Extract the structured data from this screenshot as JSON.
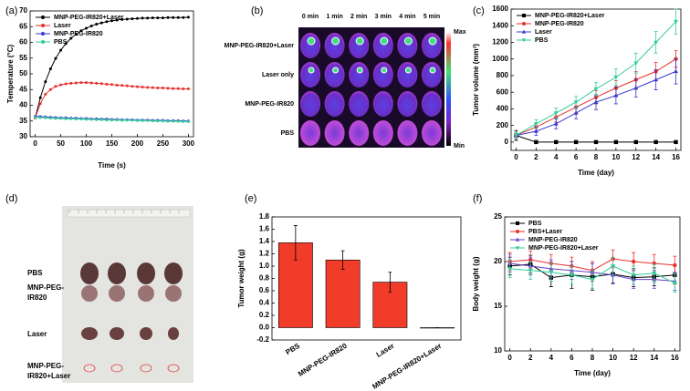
{
  "chart_data": [
    {
      "type": "line",
      "panel": "(a)",
      "xlabel": "Time (s)",
      "ylabel": "Temperature (°C)",
      "x": [
        0,
        10,
        20,
        30,
        40,
        50,
        60,
        70,
        80,
        90,
        100,
        110,
        120,
        130,
        140,
        150,
        160,
        170,
        180,
        190,
        200,
        210,
        220,
        230,
        240,
        250,
        260,
        270,
        280,
        290,
        300
      ],
      "xlim": [
        -10,
        310
      ],
      "xticks": [
        0,
        50,
        100,
        150,
        200,
        250,
        300
      ],
      "ylim": [
        30,
        70
      ],
      "yticks": [
        30,
        35,
        40,
        45,
        50,
        55,
        60,
        65,
        70
      ],
      "series": [
        {
          "name": "MNP-PEG-IR820+Laser",
          "color": "#000000",
          "values": [
            36.0,
            42.4,
            47.5,
            51.6,
            54.9,
            57.5,
            59.6,
            61.3,
            62.6,
            63.7,
            64.5,
            65.2,
            65.8,
            66.2,
            66.6,
            66.9,
            67.1,
            67.3,
            67.4,
            67.5,
            67.6,
            67.7,
            67.7,
            67.8,
            67.8,
            67.8,
            67.9,
            67.9,
            67.9,
            67.9,
            68.0
          ]
        },
        {
          "name": "Laser",
          "color": "#e8302e",
          "values": [
            36,
            40.5,
            43.5,
            45,
            46,
            46.5,
            46.8,
            47,
            47.1,
            47.2,
            47.2,
            47.1,
            47,
            46.9,
            46.7,
            46.6,
            46.4,
            46.3,
            46.2,
            46,
            45.9,
            45.8,
            45.7,
            45.6,
            45.5,
            45.5,
            45.4,
            45.3,
            45.3,
            45.2,
            45.2
          ]
        },
        {
          "name": "MNP-PEG-IR820",
          "color": "#3a3ad0",
          "values": [
            36.5,
            36.4,
            36.3,
            36.2,
            36.1,
            36.0,
            36.0,
            35.9,
            35.9,
            35.8,
            35.8,
            35.7,
            35.7,
            35.6,
            35.6,
            35.5,
            35.5,
            35.4,
            35.4,
            35.4,
            35.3,
            35.3,
            35.3,
            35.2,
            35.2,
            35.2,
            35.1,
            35.1,
            35.1,
            35.0,
            35.0
          ]
        },
        {
          "name": "PBS",
          "color": "#33cc99",
          "values": [
            36.2,
            36.1,
            36.0,
            35.9,
            35.8,
            35.8,
            35.7,
            35.7,
            35.6,
            35.6,
            35.5,
            35.5,
            35.4,
            35.4,
            35.3,
            35.3,
            35.3,
            35.2,
            35.2,
            35.2,
            35.1,
            35.1,
            35.1,
            35.0,
            35.0,
            35.0,
            34.9,
            34.9,
            34.9,
            34.8,
            34.8
          ]
        }
      ]
    },
    {
      "type": "line",
      "panel": "(c)",
      "xlabel": "Time (day)",
      "ylabel": "Tumor volume (mm³)",
      "x": [
        0,
        2,
        4,
        6,
        8,
        10,
        12,
        14,
        16
      ],
      "xlim": [
        -0.5,
        16.5
      ],
      "xticks": [
        0,
        2,
        4,
        6,
        8,
        10,
        12,
        14,
        16
      ],
      "ylim": [
        -100,
        1600
      ],
      "yticks": [
        0,
        200,
        400,
        600,
        800,
        1000,
        1200,
        1400,
        1600
      ],
      "series": [
        {
          "name": "MNP-PEG-IR820+Laser",
          "color": "#000000",
          "marker": "square",
          "values": [
            80,
            0,
            0,
            0,
            0,
            0,
            0,
            0,
            0
          ],
          "errors": [
            60,
            0,
            0,
            0,
            0,
            0,
            0,
            0,
            0
          ]
        },
        {
          "name": "MNP-PEG-IR820",
          "color": "#e8302e",
          "marker": "circle",
          "values": [
            80,
            180,
            300,
            420,
            540,
            650,
            750,
            850,
            1000
          ],
          "errors": [
            40,
            50,
            60,
            70,
            80,
            90,
            100,
            110,
            100
          ]
        },
        {
          "name": "Laser",
          "color": "#3a3ad0",
          "marker": "triangle",
          "values": [
            80,
            130,
            220,
            350,
            480,
            560,
            650,
            750,
            850
          ],
          "errors": [
            40,
            50,
            60,
            70,
            90,
            100,
            110,
            120,
            150
          ]
        },
        {
          "name": "PBS",
          "color": "#33cc99",
          "marker": "triangle-down",
          "values": [
            80,
            220,
            350,
            480,
            640,
            780,
            950,
            1200,
            1450
          ],
          "errors": [
            40,
            50,
            60,
            70,
            80,
            100,
            120,
            130,
            150
          ]
        }
      ]
    },
    {
      "type": "bar",
      "panel": "(e)",
      "ylabel": "Tumor weight (g)",
      "categories": [
        "PBS",
        "MNP-PEG-IR820",
        "Laser",
        "MNP-PEG-IR820+Laser"
      ],
      "values": [
        1.38,
        1.1,
        0.74,
        0.0
      ],
      "errors": [
        0.28,
        0.15,
        0.16,
        0
      ],
      "color": "#f03c28",
      "ylim": [
        -0.2,
        1.8
      ],
      "yticks": [
        -0.2,
        {
          "value": 0,
          "label": "0.0"
        },
        0.2,
        0.4,
        0.6,
        0.8,
        {
          "value": 1,
          "label": "1.0"
        },
        1.2,
        1.4,
        1.6,
        1.8
      ]
    },
    {
      "type": "line",
      "panel": "(f)",
      "xlabel": "Time (day)",
      "ylabel": "Body weight (g)",
      "x": [
        0,
        2,
        4,
        6,
        8,
        10,
        12,
        14,
        16
      ],
      "xlim": [
        -0.5,
        16.5
      ],
      "xticks": [
        0,
        2,
        4,
        6,
        8,
        10,
        12,
        14,
        16
      ],
      "ylim": [
        10,
        25
      ],
      "yticks": [
        10,
        15,
        20,
        25
      ],
      "series": [
        {
          "name": "PBS",
          "color": "#000000",
          "marker": "square",
          "values": [
            19.5,
            19.7,
            18.2,
            18.5,
            18.3,
            18.6,
            18.2,
            18.3,
            18.5
          ],
          "errors": [
            1,
            1,
            1,
            1.5,
            1.5,
            1,
            1,
            1,
            1
          ]
        },
        {
          "name": "PBS+Laser",
          "color": "#e8302e",
          "marker": "circle",
          "values": [
            20.0,
            20.2,
            19.8,
            19.5,
            19.0,
            20.3,
            20.0,
            19.8,
            19.6
          ],
          "errors": [
            1,
            1,
            1,
            1,
            1,
            1,
            1,
            1,
            1
          ]
        },
        {
          "name": "MNP-PEG-IR820",
          "color": "#6a3fc8",
          "marker": "triangle",
          "values": [
            19.8,
            19.5,
            19.2,
            19.0,
            18.8,
            18.5,
            18.0,
            18.0,
            17.8
          ],
          "errors": [
            1,
            1,
            1,
            1,
            1,
            1,
            1,
            1,
            1
          ]
        },
        {
          "name": "MNP-PEG-IR820+Laser",
          "color": "#33cc99",
          "marker": "triangle-down",
          "values": [
            19.2,
            19.0,
            18.8,
            18.5,
            18.0,
            19.5,
            18.5,
            18.7,
            17.6
          ],
          "errors": [
            1,
            1,
            1,
            1,
            1,
            1,
            1,
            1,
            1
          ]
        }
      ]
    }
  ],
  "fluorescence": {
    "panel": "(b)",
    "time_labels": [
      "0 min",
      "1 min",
      "2 min",
      "3 min",
      "4 min",
      "5 min"
    ],
    "row_labels": [
      "MNP-PEG-IR820+Laser",
      "Laser only",
      "MNP-PEG-IR820",
      "PBS"
    ],
    "scale_max": "Max",
    "scale_min": "Min"
  },
  "photo": {
    "panel": "(d)",
    "row_labels": [
      "PBS",
      "MNP-PEG-IR820",
      "Laser",
      "MNP-PEG-IR820+Laser"
    ]
  }
}
